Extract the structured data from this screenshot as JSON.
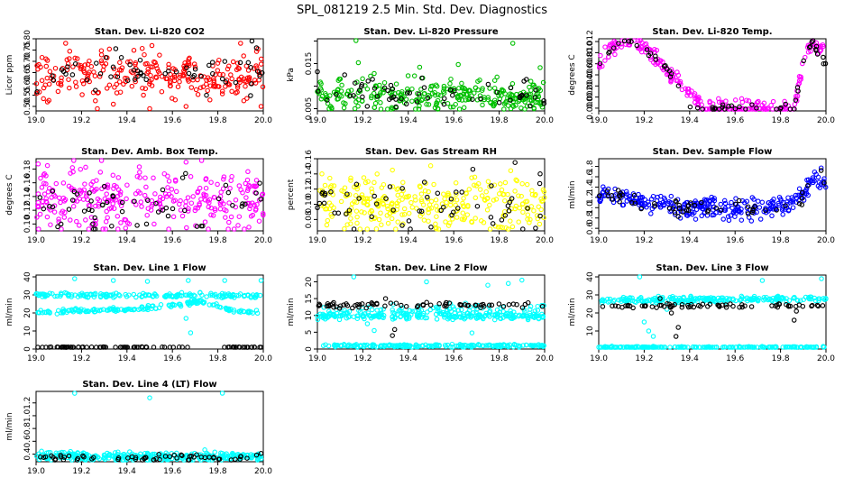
{
  "figure_title": "SPL_081219  2.5 Min. Std. Dev. Diagnostics",
  "chart_data": [
    {
      "type": "scatter",
      "title": "Stan. Dev. Li-820 CO2",
      "ylabel": "Licor ppm",
      "xlim": [
        19.0,
        20.0
      ],
      "ylim": [
        0.48,
        0.8
      ],
      "xticks": [
        "19.0",
        "19.2",
        "19.4",
        "19.6",
        "19.8",
        "20.0"
      ],
      "yticks": [
        "0.50",
        "0.55",
        "0.60",
        "0.65",
        "0.70",
        "0.75",
        "0.80"
      ],
      "series": [
        {
          "color": "#ff0000",
          "bands": [
            {
              "mean": 0.64,
              "spread": 0.05,
              "n": 260
            }
          ],
          "outliers": [
            [
              19.13,
              0.78
            ],
            [
              19.51,
              0.77
            ],
            [
              19.9,
              0.78
            ],
            [
              19.5,
              0.49
            ],
            [
              19.05,
              0.52
            ],
            [
              19.34,
              0.51
            ],
            [
              19.99,
              0.5
            ],
            [
              19.66,
              0.5
            ],
            [
              19.27,
              0.49
            ]
          ]
        },
        {
          "color": "#000000",
          "bands": [
            {
              "mean": 0.65,
              "spread": 0.04,
              "n": 55
            }
          ],
          "outliers": [
            [
              19.95,
              0.79
            ],
            [
              19.97,
              0.76
            ]
          ]
        }
      ]
    },
    {
      "type": "scatter",
      "title": "Stan. Dev. Li-820 Pressure",
      "ylabel": "kPa",
      "xlim": [
        19.0,
        20.0
      ],
      "ylim": [
        0.0045,
        0.0205
      ],
      "xticks": [
        "19.0",
        "19.2",
        "19.4",
        "19.6",
        "19.8",
        "20.0"
      ],
      "yticks": [
        "0.005",
        "",
        "0.015",
        ""
      ],
      "ytick_values": [
        0.005,
        0.01,
        0.015,
        0.02
      ],
      "series": [
        {
          "color": "#00c000",
          "bands": [
            {
              "mean": 0.0078,
              "spread": 0.0018,
              "n": 300
            }
          ],
          "outliers": [
            [
              19.17,
              0.0203
            ],
            [
              19.86,
              0.0195
            ],
            [
              19.18,
              0.0152
            ],
            [
              19.62,
              0.0148
            ],
            [
              19.45,
              0.0142
            ],
            [
              19.98,
              0.0141
            ],
            [
              19.25,
              0.0128
            ]
          ]
        },
        {
          "color": "#000000",
          "bands": [
            {
              "mean": 0.0082,
              "spread": 0.0015,
              "n": 55
            }
          ],
          "outliers": [
            [
              19.0,
              0.0132
            ],
            [
              19.12,
              0.0125
            ],
            [
              19.46,
              0.0118
            ],
            [
              19.92,
              0.0115
            ]
          ]
        }
      ]
    },
    {
      "type": "scatter",
      "title": "Stan. Dev. Li-820 Temp.",
      "ylabel": "degrees C",
      "xlim": [
        19.0,
        20.0
      ],
      "ylim": [
        -0.0005,
        0.0125
      ],
      "xticks": [
        "19.0",
        "19.2",
        "19.4",
        "19.6",
        "19.8",
        "20.0"
      ],
      "yticks": [
        "0.000",
        "0.002",
        "0.004",
        "0.006",
        "0.008",
        "0.010",
        "0.012"
      ],
      "ytick_values": [
        0.0,
        0.002,
        0.004,
        0.006,
        0.008,
        0.01,
        0.012
      ],
      "series": [
        {
          "color": "#ff00ff",
          "curve": [
            [
              19.0,
              0.0078
            ],
            [
              19.05,
              0.0105
            ],
            [
              19.1,
              0.012
            ],
            [
              19.17,
              0.0118
            ],
            [
              19.22,
              0.0105
            ],
            [
              19.27,
              0.0082
            ],
            [
              19.32,
              0.006
            ],
            [
              19.37,
              0.0038
            ],
            [
              19.42,
              0.0018
            ],
            [
              19.47,
              0.0
            ],
            [
              19.55,
              0.0
            ],
            [
              19.6,
              0.0
            ],
            [
              19.65,
              0.0005
            ],
            [
              19.75,
              0.0
            ],
            [
              19.86,
              0.0
            ],
            [
              19.88,
              0.004
            ],
            [
              19.9,
              0.0085
            ],
            [
              19.94,
              0.012
            ],
            [
              20.0,
              0.0095
            ]
          ],
          "n": 240,
          "spread": 0.0007
        },
        {
          "color": "#000000",
          "curve": [
            [
              19.0,
              0.0078
            ],
            [
              19.1,
              0.012
            ],
            [
              19.2,
              0.011
            ],
            [
              19.27,
              0.0085
            ],
            [
              19.34,
              0.0055
            ],
            [
              19.4,
              0.0
            ],
            [
              19.86,
              0.0
            ],
            [
              19.9,
              0.009
            ],
            [
              19.94,
              0.012
            ],
            [
              20.0,
              0.0075
            ]
          ],
          "n": 60,
          "spread": 0.0005
        }
      ]
    },
    {
      "type": "scatter",
      "title": "Stan. Dev. Amb. Box Temp.",
      "ylabel": "degrees C",
      "xlim": [
        19.0,
        20.0
      ],
      "ylim": [
        0.09,
        0.195
      ],
      "xticks": [
        "19.0",
        "19.2",
        "19.4",
        "19.6",
        "19.8",
        "20.0"
      ],
      "yticks": [
        "0.10",
        "0.12",
        "0.14",
        "0.16",
        "0.18"
      ],
      "ytick_values": [
        0.1,
        0.12,
        0.14,
        0.16,
        0.18
      ],
      "series": [
        {
          "color": "#ff00ff",
          "bands": [
            {
              "mean": 0.135,
              "spread": 0.023,
              "n": 300
            }
          ],
          "outliers": [
            [
              19.66,
              0.19
            ],
            [
              19.05,
              0.185
            ],
            [
              19.16,
              0.182
            ]
          ]
        },
        {
          "color": "#000000",
          "bands": [
            {
              "mean": 0.13,
              "spread": 0.018,
              "n": 55
            }
          ],
          "outliers": [
            [
              19.11,
              0.1
            ]
          ]
        }
      ]
    },
    {
      "type": "scatter",
      "title": "Stan. Dev. Gas Stream RH",
      "ylabel": "percent",
      "xlim": [
        19.0,
        20.0
      ],
      "ylim": [
        0.065,
        0.16
      ],
      "xticks": [
        "19.0",
        "19.2",
        "19.4",
        "19.6",
        "19.8",
        "20.0"
      ],
      "yticks": [
        "0.08",
        "0.10",
        "0.12",
        "0.14",
        "0.16"
      ],
      "ytick_values": [
        0.08,
        0.1,
        0.12,
        0.14,
        0.16
      ],
      "series": [
        {
          "color": "#ffff00",
          "bands": [
            {
              "mean": 0.1,
              "spread": 0.018,
              "n": 300
            }
          ],
          "outliers": [
            [
              19.33,
              0.145
            ],
            [
              19.02,
              0.14
            ]
          ]
        },
        {
          "color": "#000000",
          "bands": [
            {
              "mean": 0.098,
              "spread": 0.017,
              "n": 55
            }
          ],
          "outliers": [
            [
              19.87,
              0.155
            ],
            [
              19.98,
              0.14
            ],
            [
              19.5,
              0.07
            ]
          ]
        }
      ]
    },
    {
      "type": "scatter",
      "title": "Stan. Dev. Sample Flow",
      "ylabel": "ml/min",
      "xlim": [
        19.0,
        20.0
      ],
      "ylim": [
        0.55,
        1.95
      ],
      "xticks": [
        "19.0",
        "19.2",
        "19.4",
        "19.6",
        "19.8",
        "20.0"
      ],
      "yticks": [
        "0.6",
        "0.8",
        "1.0",
        "1.2",
        "1.4",
        "1.6",
        "1.8"
      ],
      "ytick_values": [
        0.6,
        0.8,
        1.0,
        1.2,
        1.4,
        1.6,
        1.8
      ],
      "series": [
        {
          "color": "#0000ff",
          "curve": [
            [
              19.0,
              1.32
            ],
            [
              19.1,
              1.2
            ],
            [
              19.2,
              1.1
            ],
            [
              19.3,
              1.05
            ],
            [
              19.4,
              1.0
            ],
            [
              19.5,
              0.98
            ],
            [
              19.6,
              0.98
            ],
            [
              19.7,
              1.0
            ],
            [
              19.8,
              1.05
            ],
            [
              19.85,
              1.1
            ],
            [
              19.9,
              1.25
            ],
            [
              19.95,
              1.6
            ],
            [
              20.0,
              1.5
            ]
          ],
          "n": 300,
          "spread": 0.1
        },
        {
          "color": "#000000",
          "curve": [
            [
              19.0,
              1.3
            ],
            [
              19.2,
              1.1
            ],
            [
              19.5,
              0.98
            ],
            [
              19.8,
              1.0
            ],
            [
              19.9,
              1.2
            ],
            [
              19.97,
              1.8
            ],
            [
              20.0,
              1.35
            ]
          ],
          "n": 55,
          "spread": 0.08
        }
      ]
    },
    {
      "type": "scatter",
      "title": "Stan. Dev. Line 1 Flow",
      "ylabel": "ml/min",
      "xlim": [
        19.0,
        20.0
      ],
      "ylim": [
        0,
        41
      ],
      "xticks": [
        "19.0",
        "19.2",
        "19.4",
        "19.6",
        "19.8",
        "20.0"
      ],
      "yticks": [
        "0",
        "10",
        "20",
        "30",
        "40"
      ],
      "ytick_values": [
        0,
        10,
        20,
        30,
        40
      ],
      "series": [
        {
          "color": "#00ffff",
          "curve": [
            [
              19.0,
              30
            ],
            [
              20.0,
              29.5
            ]
          ],
          "n": 170,
          "spread": 0.6
        },
        {
          "color": "#00ffff",
          "curve": [
            [
              19.0,
              20.5
            ],
            [
              19.4,
              22
            ],
            [
              19.65,
              25
            ],
            [
              19.72,
              26.5
            ],
            [
              19.85,
              21.5
            ],
            [
              20.0,
              20
            ]
          ],
          "n": 170,
          "spread": 0.6,
          "outliers": [
            [
              19.17,
              39
            ],
            [
              19.34,
              38
            ],
            [
              19.49,
              37.5
            ],
            [
              19.67,
              38
            ],
            [
              19.83,
              38
            ],
            [
              19.99,
              38
            ],
            [
              19.68,
              9
            ],
            [
              19.66,
              17
            ]
          ]
        },
        {
          "color": "#000000",
          "curve": [
            [
              19.0,
              1
            ],
            [
              20.0,
              1
            ]
          ],
          "n": 80,
          "spread": 0.1
        }
      ]
    },
    {
      "type": "scatter",
      "title": "Stan. Dev. Line 2 Flow",
      "ylabel": "ml/min",
      "xlim": [
        19.0,
        20.0
      ],
      "ylim": [
        0,
        22
      ],
      "xticks": [
        "19.0",
        "19.2",
        "19.4",
        "19.6",
        "19.8",
        "20.0"
      ],
      "yticks": [
        "0",
        "5",
        "10",
        "15",
        "20"
      ],
      "ytick_values": [
        0,
        5,
        10,
        15,
        20
      ],
      "series": [
        {
          "color": "#00ffff",
          "curve": [
            [
              19.0,
              9.8
            ],
            [
              20.0,
              9.8
            ]
          ],
          "n": 220,
          "spread": 0.5
        },
        {
          "color": "#00ffff",
          "curve": [
            [
              19.0,
              1
            ],
            [
              20.0,
              1
            ]
          ],
          "n": 200,
          "spread": 0.2
        },
        {
          "color": "#00ffff",
          "curve": [
            [
              19.0,
              11.5
            ],
            [
              20.0,
              12
            ]
          ],
          "n": 80,
          "spread": 0.8,
          "outliers": [
            [
              19.16,
              21.5
            ],
            [
              19.48,
              20
            ],
            [
              19.68,
              4.8
            ],
            [
              19.25,
              5.5
            ],
            [
              19.22,
              7.5
            ],
            [
              19.84,
              19.5
            ],
            [
              19.75,
              19
            ],
            [
              19.9,
              20.5
            ]
          ]
        },
        {
          "color": "#000000",
          "curve": [
            [
              19.0,
              13
            ],
            [
              20.0,
              13
            ]
          ],
          "n": 70,
          "spread": 0.5,
          "outliers": [
            [
              19.33,
              4
            ],
            [
              19.3,
              15
            ],
            [
              19.34,
              5.8
            ]
          ]
        }
      ]
    },
    {
      "type": "scatter",
      "title": "Stan. Dev. Line 3 Flow",
      "ylabel": "ml/min",
      "xlim": [
        19.0,
        20.0
      ],
      "ylim": [
        0,
        41
      ],
      "xticks": [
        "19.0",
        "19.2",
        "19.4",
        "19.6",
        "19.8",
        "20.0"
      ],
      "yticks": [
        "10",
        "20",
        "30",
        "40"
      ],
      "ytick_values": [
        10,
        20,
        30,
        40
      ],
      "series": [
        {
          "color": "#00ffff",
          "curve": [
            [
              19.0,
              27
            ],
            [
              20.0,
              28
            ]
          ],
          "n": 230,
          "spread": 0.8
        },
        {
          "color": "#00ffff",
          "curve": [
            [
              19.0,
              1
            ],
            [
              20.0,
              1
            ]
          ],
          "n": 200,
          "spread": 0.2,
          "outliers": [
            [
              19.18,
              40
            ],
            [
              19.98,
              39
            ],
            [
              19.72,
              38
            ],
            [
              19.2,
              15
            ],
            [
              19.22,
              10
            ],
            [
              19.24,
              7
            ],
            [
              19.3,
              22
            ]
          ]
        },
        {
          "color": "#000000",
          "curve": [
            [
              19.0,
              24
            ],
            [
              20.0,
              24
            ]
          ],
          "n": 70,
          "spread": 0.6,
          "outliers": [
            [
              19.34,
              7
            ],
            [
              19.35,
              12
            ],
            [
              19.32,
              20
            ],
            [
              19.86,
              16
            ],
            [
              19.87,
              21
            ],
            [
              19.27,
              28
            ]
          ]
        }
      ]
    },
    {
      "type": "scatter",
      "title": "Stan. Dev. Line 4 (LT) Flow",
      "ylabel": "ml/min",
      "xlim": [
        19.0,
        20.0
      ],
      "ylim": [
        0.28,
        1.38
      ],
      "xticks": [
        "19.0",
        "19.2",
        "19.4",
        "19.6",
        "19.8",
        "20.0"
      ],
      "yticks": [
        "0.4",
        "0.6",
        "0.8",
        "1.0",
        "1.2"
      ],
      "ytick_values": [
        0.4,
        0.6,
        0.8,
        1.0,
        1.2
      ],
      "series": [
        {
          "color": "#00ffff",
          "bands": [
            {
              "mean": 0.36,
              "spread": 0.035,
              "n": 300
            }
          ],
          "outliers": [
            [
              19.17,
              1.35
            ],
            [
              19.82,
              1.36
            ],
            [
              19.5,
              1.28
            ]
          ]
        },
        {
          "color": "#000000",
          "bands": [
            {
              "mean": 0.34,
              "spread": 0.03,
              "n": 60
            }
          ],
          "outliers": [
            [
              19.99,
              0.41
            ]
          ]
        }
      ]
    }
  ]
}
